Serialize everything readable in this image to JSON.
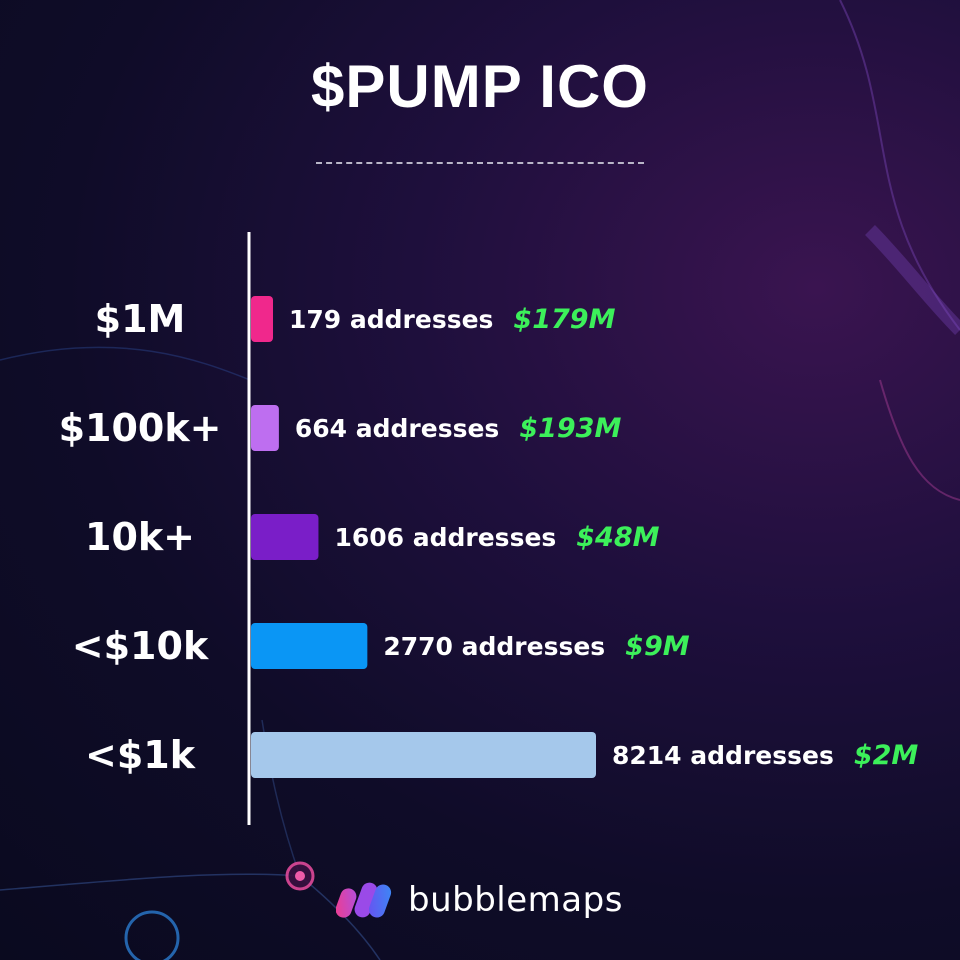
{
  "title": "$PUMP ICO",
  "brand": {
    "name": "bubblemaps",
    "logo_icon": "bubblemaps-logo-icon"
  },
  "colors": {
    "background": "#0f0c28",
    "value_text": "#3cf05a",
    "axis_line": "#ffffff"
  },
  "chart_data": {
    "type": "bar",
    "orientation": "horizontal",
    "title": "$PUMP ICO",
    "categories": [
      "$1M",
      "$100k+",
      "10k+",
      "<$10k",
      "<$1k"
    ],
    "values": [
      179,
      664,
      1606,
      2770,
      8214
    ],
    "count_labels": [
      "179 addresses",
      "664 addresses",
      "1606 addresses",
      "2770 addresses",
      "8214 addresses"
    ],
    "value_labels": [
      "$179M",
      "$193M",
      "$48M",
      "$9M",
      "$2M"
    ],
    "bar_colors": [
      "#f0288c",
      "#be6ef0",
      "#7a1ec8",
      "#0a96f5",
      "#a5c8eb"
    ],
    "grid": false,
    "legend": "none"
  }
}
